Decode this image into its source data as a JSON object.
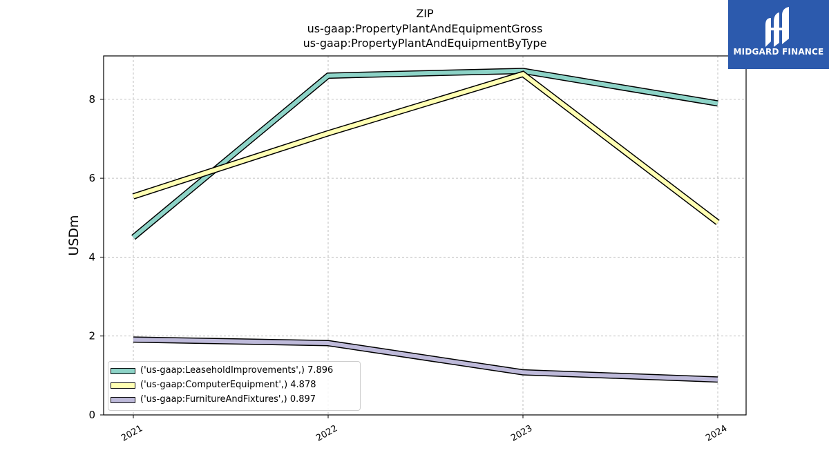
{
  "chart_data": {
    "type": "line",
    "title_lines": [
      "ZIP",
      "us-gaap:PropertyPlantAndEquipmentGross",
      "us-gaap:PropertyPlantAndEquipmentByType"
    ],
    "xlabel": "",
    "ylabel": "USDm",
    "categories": [
      "2021",
      "2022",
      "2023",
      "2024"
    ],
    "ylim": [
      0,
      9.1
    ],
    "yticks": [
      "0",
      "2",
      "4",
      "6",
      "8"
    ],
    "grid": true,
    "legend_position": "lower-left",
    "series": [
      {
        "name": "('us-gaap:LeaseholdImprovements',) 7.896",
        "values": [
          4.5,
          8.6,
          8.72,
          7.896
        ],
        "color": "#8dd3c7"
      },
      {
        "name": "('us-gaap:ComputerEquipment',) 4.878",
        "values": [
          5.54,
          7.14,
          8.64,
          4.878
        ],
        "color": "#ffffb3"
      },
      {
        "name": "('us-gaap:FurnitureAndFixtures',) 0.897",
        "values": [
          1.91,
          1.82,
          1.08,
          0.897
        ],
        "color": "#bebada"
      }
    ]
  },
  "logo": {
    "name": "MIDGARD FINANCE",
    "color": "#2c5aad"
  }
}
